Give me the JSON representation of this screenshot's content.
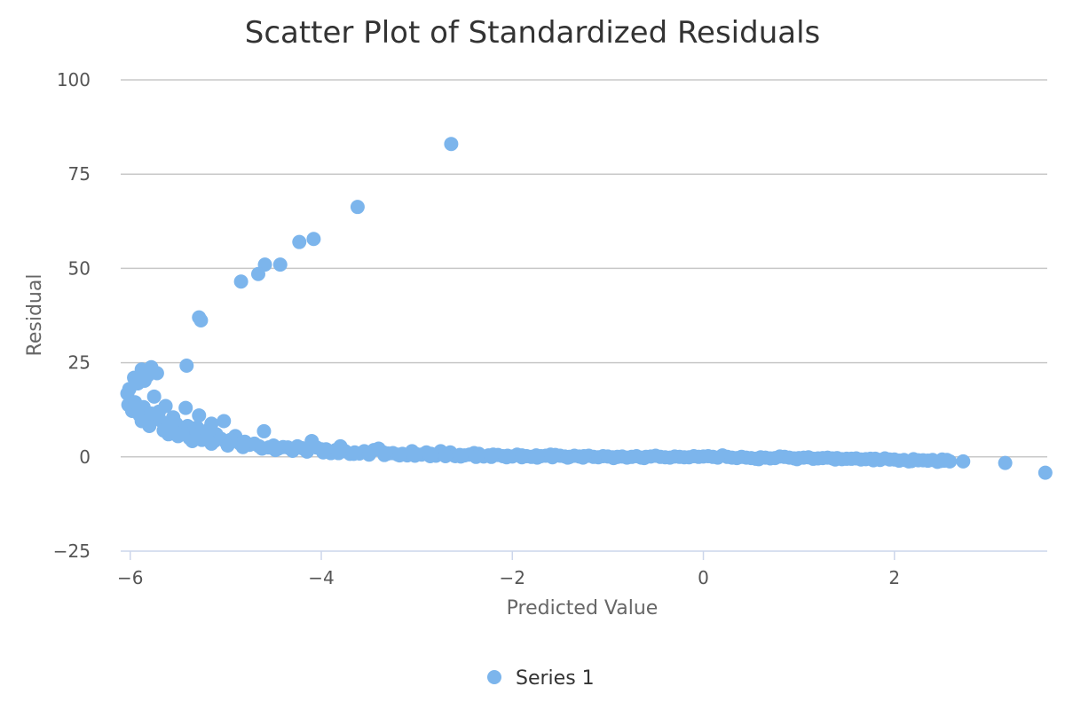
{
  "chart_data": {
    "type": "scatter",
    "title": "Scatter Plot of Standardized Residuals",
    "xlabel": "Predicted Value",
    "ylabel": "Residual",
    "xlim": [
      -6.1,
      3.6
    ],
    "ylim": [
      -25,
      100
    ],
    "xticks": [
      "−6",
      "−4",
      "−2",
      "0",
      "2"
    ],
    "xtick_values": [
      -6,
      -4,
      -2,
      0,
      2
    ],
    "yticks": [
      "100",
      "75",
      "50",
      "25",
      "0",
      "−25"
    ],
    "ytick_values": [
      100,
      75,
      50,
      25,
      0,
      -25
    ],
    "grid": true,
    "legend": "bottom-center",
    "color": "#7cb5ec",
    "series": [
      {
        "name": "Series 1",
        "points": [
          [
            -2.64,
            83.0
          ],
          [
            -3.62,
            66.3
          ],
          [
            -4.08,
            57.8
          ],
          [
            -4.23,
            57.0
          ],
          [
            -4.43,
            51.0
          ],
          [
            -4.59,
            51.0
          ],
          [
            -4.66,
            48.5
          ],
          [
            -4.84,
            46.5
          ],
          [
            -5.28,
            37.0
          ],
          [
            -5.26,
            36.2
          ],
          [
            -5.41,
            24.2
          ],
          [
            -5.88,
            23.2
          ],
          [
            -5.78,
            23.8
          ],
          [
            -5.72,
            22.2
          ],
          [
            -5.96,
            21.0
          ],
          [
            -5.85,
            20.2
          ],
          [
            -5.92,
            19.5
          ],
          [
            -5.82,
            21.5
          ],
          [
            -6.03,
            16.8
          ],
          [
            -6.01,
            18.0
          ],
          [
            -5.75,
            16.0
          ],
          [
            -6.02,
            13.8
          ],
          [
            -5.98,
            12.2
          ],
          [
            -5.86,
            13.2
          ],
          [
            -5.63,
            13.5
          ],
          [
            -5.42,
            13.0
          ],
          [
            -5.28,
            11.0
          ],
          [
            -5.02,
            9.5
          ],
          [
            -5.15,
            8.8
          ],
          [
            -5.55,
            10.5
          ],
          [
            -5.7,
            10.0
          ],
          [
            -5.88,
            9.5
          ],
          [
            -5.8,
            8.2
          ],
          [
            -5.6,
            8.0
          ],
          [
            -5.48,
            7.5
          ],
          [
            -5.35,
            7.0
          ],
          [
            -5.22,
            6.5
          ],
          [
            -5.1,
            6.0
          ],
          [
            -4.6,
            6.8
          ],
          [
            -5.9,
            11.0
          ],
          [
            -5.78,
            11.5
          ],
          [
            -5.66,
            9.2
          ],
          [
            -5.52,
            8.8
          ],
          [
            -5.4,
            8.2
          ],
          [
            -5.3,
            7.8
          ],
          [
            -5.18,
            7.2
          ],
          [
            -5.6,
            6.0
          ],
          [
            -5.5,
            5.5
          ],
          [
            -5.38,
            5.0
          ],
          [
            -5.25,
            4.5
          ],
          [
            -5.12,
            4.2
          ],
          [
            -5.0,
            4.0
          ],
          [
            -4.9,
            5.5
          ],
          [
            -4.85,
            3.5
          ],
          [
            -4.75,
            3.2
          ],
          [
            -4.65,
            2.8
          ],
          [
            -4.55,
            2.5
          ],
          [
            -4.45,
            2.2
          ],
          [
            -4.35,
            2.5
          ],
          [
            -4.25,
            2.8
          ],
          [
            -4.1,
            4.2
          ],
          [
            -4.05,
            2.5
          ],
          [
            -3.95,
            2.0
          ],
          [
            -3.85,
            1.8
          ],
          [
            -3.75,
            1.5
          ],
          [
            -3.65,
            1.2
          ],
          [
            -3.55,
            1.5
          ],
          [
            -3.45,
            1.8
          ],
          [
            -3.35,
            1.2
          ],
          [
            -3.25,
            1.0
          ],
          [
            -3.15,
            0.8
          ],
          [
            -3.05,
            1.5
          ],
          [
            -2.95,
            0.6
          ],
          [
            -2.85,
            0.8
          ],
          [
            -2.75,
            1.5
          ],
          [
            -2.65,
            1.2
          ],
          [
            -2.55,
            0.5
          ],
          [
            -2.45,
            0.6
          ],
          [
            -2.35,
            0.8
          ],
          [
            -2.25,
            0.4
          ],
          [
            -2.15,
            0.5
          ],
          [
            -2.05,
            0.3
          ],
          [
            -1.95,
            0.6
          ],
          [
            -1.85,
            0.2
          ],
          [
            -1.75,
            0.4
          ],
          [
            -1.65,
            0.3
          ],
          [
            -1.55,
            0.5
          ],
          [
            -1.45,
            0.1
          ],
          [
            -1.35,
            0.3
          ],
          [
            -1.25,
            0.2
          ],
          [
            -1.15,
            0.0
          ],
          [
            -1.05,
            0.2
          ],
          [
            -0.95,
            -0.1
          ],
          [
            -0.85,
            0.1
          ],
          [
            -0.75,
            0.0
          ],
          [
            -0.65,
            -0.2
          ],
          [
            -0.55,
            0.1
          ],
          [
            -0.45,
            0.0
          ],
          [
            -0.35,
            -0.2
          ],
          [
            -0.25,
            0.0
          ],
          [
            -0.15,
            -0.1
          ],
          [
            -0.05,
            0.0
          ],
          [
            0.05,
            0.2
          ],
          [
            0.15,
            -0.2
          ],
          [
            0.25,
            0.0
          ],
          [
            0.35,
            -0.3
          ],
          [
            0.45,
            -0.2
          ],
          [
            0.55,
            -0.5
          ],
          [
            0.65,
            -0.2
          ],
          [
            0.75,
            -0.3
          ],
          [
            0.85,
            0.0
          ],
          [
            0.95,
            -0.4
          ],
          [
            1.05,
            -0.2
          ],
          [
            1.15,
            -0.5
          ],
          [
            1.25,
            -0.3
          ],
          [
            1.35,
            -0.4
          ],
          [
            1.45,
            -0.6
          ],
          [
            1.55,
            -0.5
          ],
          [
            1.65,
            -0.7
          ],
          [
            1.75,
            -0.5
          ],
          [
            1.85,
            -0.8
          ],
          [
            1.95,
            -0.7
          ],
          [
            2.05,
            -1.0
          ],
          [
            2.15,
            -1.2
          ],
          [
            2.25,
            -0.9
          ],
          [
            2.35,
            -1.0
          ],
          [
            2.45,
            -1.3
          ],
          [
            2.52,
            -1.0
          ],
          [
            2.58,
            -1.2
          ],
          [
            2.72,
            -1.2
          ],
          [
            3.16,
            -1.6
          ],
          [
            3.58,
            -4.2
          ],
          [
            -5.95,
            14.5
          ],
          [
            -5.7,
            12.0
          ],
          [
            -5.55,
            9.0
          ],
          [
            -5.45,
            6.5
          ],
          [
            -5.3,
            5.8
          ],
          [
            -5.2,
            5.2
          ],
          [
            -5.05,
            4.8
          ],
          [
            -4.95,
            4.5
          ],
          [
            -4.8,
            4.0
          ],
          [
            -4.7,
            3.5
          ],
          [
            -4.5,
            3.0
          ],
          [
            -4.4,
            2.6
          ],
          [
            -4.2,
            2.3
          ],
          [
            -4.0,
            2.0
          ],
          [
            -3.9,
            1.0
          ],
          [
            -3.8,
            2.8
          ],
          [
            -3.7,
            0.8
          ],
          [
            -3.6,
            0.9
          ],
          [
            -3.5,
            0.7
          ],
          [
            -3.4,
            2.2
          ],
          [
            -3.3,
            0.9
          ],
          [
            -3.2,
            0.6
          ],
          [
            -3.1,
            0.4
          ],
          [
            -3.0,
            0.7
          ],
          [
            -2.9,
            1.2
          ],
          [
            -2.8,
            0.3
          ],
          [
            -2.7,
            0.5
          ],
          [
            -2.6,
            0.2
          ],
          [
            -2.5,
            0.4
          ],
          [
            -2.4,
            1.0
          ],
          [
            -2.3,
            0.1
          ],
          [
            -2.2,
            0.6
          ],
          [
            -2.1,
            0.2
          ],
          [
            -2.0,
            0.1
          ],
          [
            -1.9,
            0.4
          ],
          [
            -1.8,
            0.0
          ],
          [
            -1.7,
            0.2
          ],
          [
            -1.6,
            0.6
          ],
          [
            -1.5,
            0.3
          ],
          [
            -1.4,
            0.0
          ],
          [
            -1.3,
            0.1
          ],
          [
            -1.2,
            0.3
          ],
          [
            -1.1,
            -0.1
          ],
          [
            -1.0,
            0.1
          ],
          [
            -0.9,
            0.0
          ],
          [
            -0.8,
            -0.2
          ],
          [
            -0.7,
            0.2
          ],
          [
            -0.6,
            0.0
          ],
          [
            -0.5,
            0.3
          ],
          [
            -0.4,
            -0.1
          ],
          [
            -0.3,
            0.1
          ],
          [
            -0.2,
            -0.1
          ],
          [
            -0.1,
            0.2
          ],
          [
            0.0,
            0.1
          ],
          [
            0.1,
            0.0
          ],
          [
            0.2,
            0.4
          ],
          [
            0.3,
            -0.2
          ],
          [
            0.4,
            0.0
          ],
          [
            0.5,
            -0.3
          ],
          [
            0.6,
            -0.1
          ],
          [
            0.7,
            -0.4
          ],
          [
            0.8,
            0.1
          ],
          [
            0.9,
            -0.2
          ],
          [
            1.0,
            -0.3
          ],
          [
            1.1,
            -0.1
          ],
          [
            1.2,
            -0.4
          ],
          [
            1.3,
            -0.2
          ],
          [
            1.4,
            -0.3
          ],
          [
            1.5,
            -0.5
          ],
          [
            1.6,
            -0.4
          ],
          [
            1.7,
            -0.6
          ],
          [
            1.8,
            -0.5
          ],
          [
            1.9,
            -0.4
          ],
          [
            2.0,
            -0.7
          ],
          [
            2.1,
            -0.8
          ],
          [
            2.2,
            -0.6
          ],
          [
            2.3,
            -0.9
          ],
          [
            2.4,
            -0.8
          ],
          [
            2.5,
            -0.7
          ],
          [
            2.55,
            -0.8
          ],
          [
            -5.65,
            7.0
          ],
          [
            -5.5,
            6.0
          ],
          [
            -5.35,
            4.2
          ],
          [
            -5.15,
            3.5
          ],
          [
            -4.98,
            3.0
          ],
          [
            -4.82,
            2.6
          ],
          [
            -4.62,
            2.2
          ],
          [
            -4.48,
            1.8
          ],
          [
            -4.3,
            1.6
          ],
          [
            -4.15,
            1.4
          ],
          [
            -3.98,
            1.2
          ],
          [
            -3.82,
            1.0
          ],
          [
            -3.66,
            0.8
          ],
          [
            -3.5,
            0.6
          ],
          [
            -3.34,
            0.5
          ],
          [
            -3.18,
            0.4
          ],
          [
            -3.02,
            0.3
          ],
          [
            -2.86,
            0.2
          ],
          [
            -2.7,
            0.2
          ],
          [
            -2.54,
            0.1
          ],
          [
            -2.38,
            0.0
          ],
          [
            -2.22,
            0.0
          ],
          [
            -2.06,
            -0.1
          ],
          [
            -1.9,
            -0.1
          ],
          [
            -1.74,
            -0.2
          ],
          [
            -1.58,
            -0.1
          ],
          [
            -1.42,
            -0.2
          ],
          [
            -1.26,
            -0.2
          ],
          [
            -0.94,
            -0.3
          ],
          [
            -0.62,
            -0.3
          ],
          [
            0.58,
            -0.6
          ],
          [
            0.98,
            -0.6
          ],
          [
            1.38,
            -0.7
          ],
          [
            1.78,
            -0.9
          ],
          [
            2.18,
            -1.1
          ],
          [
            2.48,
            -1.1
          ]
        ]
      }
    ]
  }
}
